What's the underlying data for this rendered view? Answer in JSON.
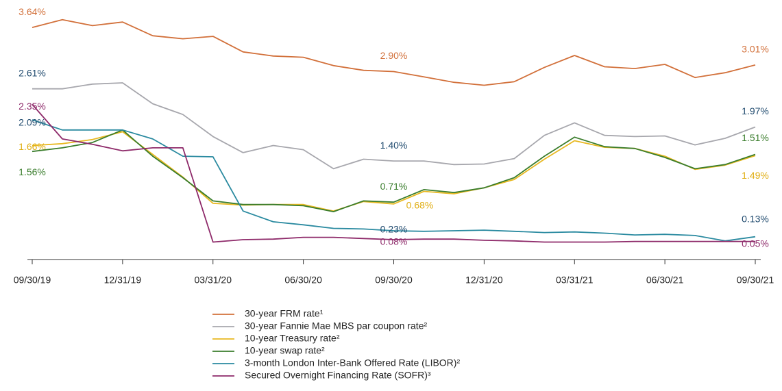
{
  "chart_data": {
    "type": "line",
    "categories": [
      "09/30/19",
      null,
      null,
      "12/31/19",
      null,
      null,
      "03/31/20",
      null,
      null,
      "06/30/20",
      null,
      null,
      "09/30/20",
      null,
      null,
      "12/31/20",
      null,
      null,
      "03/31/21",
      null,
      null,
      "06/30/21",
      null,
      null,
      "09/30/21"
    ],
    "ylim": [
      0,
      4.1
    ],
    "series": [
      {
        "name": "30-year FRM rate¹",
        "color": "#d2703a",
        "label_color": "#d2703a",
        "values": [
          3.64,
          3.77,
          3.67,
          3.73,
          3.5,
          3.45,
          3.49,
          3.23,
          3.16,
          3.14,
          3.0,
          2.92,
          2.9,
          2.81,
          2.72,
          2.67,
          2.73,
          2.97,
          3.17,
          2.98,
          2.95,
          3.02,
          2.8,
          2.88,
          3.01
        ],
        "value_labels": [
          "3.64%",
          null,
          null,
          null,
          null,
          null,
          null,
          null,
          null,
          null,
          null,
          null,
          "2.90%",
          null,
          null,
          null,
          null,
          null,
          null,
          null,
          null,
          null,
          null,
          null,
          "3.01%"
        ]
      },
      {
        "name": "30-year Fannie Mae MBS par coupon rate²",
        "color": "#a7a7ad",
        "label_color": "#1f4a6e",
        "values": [
          2.61,
          2.61,
          2.69,
          2.71,
          2.36,
          2.18,
          1.81,
          1.54,
          1.66,
          1.59,
          1.27,
          1.43,
          1.4,
          1.4,
          1.34,
          1.35,
          1.44,
          1.83,
          2.04,
          1.83,
          1.81,
          1.82,
          1.67,
          1.78,
          1.97
        ],
        "value_labels": [
          "2.61%",
          null,
          null,
          null,
          null,
          null,
          null,
          null,
          null,
          null,
          null,
          null,
          "1.40%",
          null,
          null,
          null,
          null,
          null,
          null,
          null,
          null,
          null,
          null,
          null,
          "1.97%"
        ]
      },
      {
        "name": "10-year Treasury rate²",
        "color": "#e8b820",
        "label_color": "#e0ad10",
        "values": [
          1.66,
          1.69,
          1.76,
          1.89,
          1.51,
          1.13,
          0.69,
          0.66,
          0.67,
          0.67,
          0.56,
          0.72,
          0.68,
          0.89,
          0.85,
          0.95,
          1.09,
          1.43,
          1.74,
          1.63,
          1.61,
          1.48,
          1.26,
          1.33,
          1.49
        ],
        "value_labels": [
          "1.66%",
          null,
          null,
          null,
          null,
          null,
          null,
          null,
          null,
          null,
          null,
          null,
          "0.68%",
          null,
          null,
          null,
          null,
          null,
          null,
          null,
          null,
          null,
          null,
          null,
          "1.49%"
        ]
      },
      {
        "name": "10-year swap rate²",
        "color": "#3a7d2c",
        "label_color": "#3a7d2c",
        "values": [
          1.56,
          1.62,
          1.71,
          1.92,
          1.48,
          1.12,
          0.73,
          0.67,
          0.67,
          0.65,
          0.55,
          0.73,
          0.71,
          0.92,
          0.87,
          0.95,
          1.12,
          1.48,
          1.8,
          1.64,
          1.61,
          1.46,
          1.27,
          1.34,
          1.51
        ],
        "value_labels": [
          "1.56%",
          null,
          null,
          null,
          null,
          null,
          null,
          null,
          null,
          null,
          null,
          null,
          "0.71%",
          null,
          null,
          null,
          null,
          null,
          null,
          null,
          null,
          null,
          null,
          null,
          "1.51%"
        ]
      },
      {
        "name": "3-month London Inter-Bank Offered Rate (LIBOR)²",
        "color": "#2a8aa0",
        "label_color": "#1f4a6e",
        "values": [
          2.09,
          1.92,
          1.92,
          1.92,
          1.77,
          1.48,
          1.47,
          0.56,
          0.38,
          0.33,
          0.27,
          0.26,
          0.23,
          0.22,
          0.23,
          0.24,
          0.22,
          0.2,
          0.21,
          0.19,
          0.16,
          0.17,
          0.15,
          0.06,
          0.13
        ],
        "value_labels": [
          "2.09%",
          null,
          null,
          null,
          null,
          null,
          null,
          null,
          null,
          null,
          null,
          null,
          "0.23%",
          null,
          null,
          null,
          null,
          null,
          null,
          null,
          null,
          null,
          null,
          null,
          "0.13%"
        ]
      },
      {
        "name": "Secured Overnight Financing Rate (SOFR)³",
        "color": "#8e2a6a",
        "label_color": "#8e2a6a",
        "values": [
          2.35,
          1.77,
          1.68,
          1.57,
          1.62,
          1.62,
          0.04,
          0.08,
          0.09,
          0.12,
          0.12,
          0.1,
          0.08,
          0.09,
          0.09,
          0.07,
          0.06,
          0.04,
          0.04,
          0.04,
          0.05,
          0.05,
          0.05,
          0.05,
          0.05
        ],
        "value_labels": [
          "2.35%",
          null,
          null,
          null,
          null,
          null,
          null,
          null,
          null,
          null,
          null,
          null,
          "0.08%",
          null,
          null,
          null,
          null,
          null,
          null,
          null,
          null,
          null,
          null,
          null,
          "0.05%"
        ]
      }
    ]
  }
}
